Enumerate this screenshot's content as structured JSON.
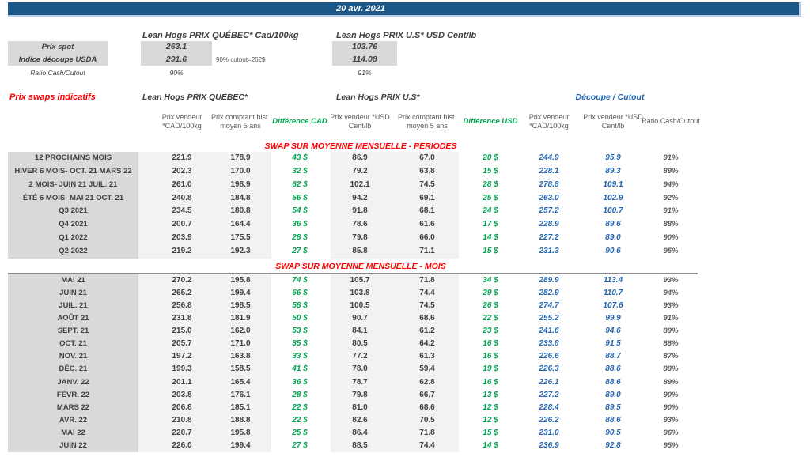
{
  "colors": {
    "title_bar_bg": "#1d5787",
    "section_title_red": "#ff0000",
    "difference_green": "#00a550",
    "cutout_blue": "#2365ae",
    "text_dark": "#404040",
    "text_gray": "#595959",
    "label_column_bg": "#d9d9d9",
    "data_column_bg": "#f2f2f2"
  },
  "titlebar": {
    "date": "20 avr. 2021"
  },
  "spot": {
    "quebec_title": "Lean Hogs PRIX QUÉBEC* Cad/100kg",
    "us_title": "Lean Hogs PRIX U.S* USD Cent/lb",
    "rows": [
      {
        "label": "Prix spot",
        "qc": "263.1",
        "us": "103.76"
      },
      {
        "label": "Indice découpe USDA",
        "qc": "291.6",
        "us": "114.08",
        "note": "90% cutout=262$"
      },
      {
        "label": "Ratio Cash/Cutout",
        "qc": "90%",
        "us": "91%"
      }
    ]
  },
  "table": {
    "left_title": "Prix swaps indicatifs",
    "group_quebec": "Lean Hogs PRIX QUÉBEC*",
    "group_us": "Lean Hogs PRIX U.S*",
    "group_cutout": "Découpe / Cutout",
    "headers": {
      "qc_sell": "Prix vendeur *CAD/100kg",
      "qc_hist": "Prix comptant hist. moyen 5 ans",
      "diff_cad": "Différence CAD",
      "us_sell": "Prix vendeur *USD Cent/lb",
      "us_hist": "Prix comptant hist. moyen 5 ans",
      "diff_usd": "Différence USD",
      "cut_cad": "Prix vendeur *CAD/100kg",
      "cut_usd": "Prix vendeur *USD Cent/lb",
      "ratio": "Ratio Cash/Cutout"
    },
    "sections": [
      {
        "title": "SWAP SUR MOYENNE MENSUELLE - PÉRIODES",
        "rows": [
          {
            "label": "12 PROCHAINS MOIS",
            "qc_sell": "221.9",
            "qc_hist": "178.9",
            "diff_cad": "43 $",
            "us_sell": "86.9",
            "us_hist": "67.0",
            "diff_usd": "20 $",
            "cut_cad": "244.9",
            "cut_usd": "95.9",
            "ratio": "91%"
          },
          {
            "label": "HIVER 6 MOIS- OCT. 21 MARS 22",
            "qc_sell": "202.3",
            "qc_hist": "170.0",
            "diff_cad": "32 $",
            "us_sell": "79.2",
            "us_hist": "63.8",
            "diff_usd": "15 $",
            "cut_cad": "228.1",
            "cut_usd": "89.3",
            "ratio": "89%"
          },
          {
            "label": "2 MOIS- JUIN 21 JUIL. 21",
            "qc_sell": "261.0",
            "qc_hist": "198.9",
            "diff_cad": "62 $",
            "us_sell": "102.1",
            "us_hist": "74.5",
            "diff_usd": "28 $",
            "cut_cad": "278.8",
            "cut_usd": "109.1",
            "ratio": "94%"
          },
          {
            "label": "ÉTÉ 6 MOIS- MAI 21 OCT. 21",
            "qc_sell": "240.8",
            "qc_hist": "184.8",
            "diff_cad": "56 $",
            "us_sell": "94.2",
            "us_hist": "69.1",
            "diff_usd": "25 $",
            "cut_cad": "263.0",
            "cut_usd": "102.9",
            "ratio": "92%"
          },
          {
            "label": "Q3 2021",
            "qc_sell": "234.5",
            "qc_hist": "180.8",
            "diff_cad": "54 $",
            "us_sell": "91.8",
            "us_hist": "68.1",
            "diff_usd": "24 $",
            "cut_cad": "257.2",
            "cut_usd": "100.7",
            "ratio": "91%"
          },
          {
            "label": "Q4 2021",
            "qc_sell": "200.7",
            "qc_hist": "164.4",
            "diff_cad": "36 $",
            "us_sell": "78.6",
            "us_hist": "61.6",
            "diff_usd": "17 $",
            "cut_cad": "228.9",
            "cut_usd": "89.6",
            "ratio": "88%"
          },
          {
            "label": "Q1 2022",
            "qc_sell": "203.9",
            "qc_hist": "175.5",
            "diff_cad": "28 $",
            "us_sell": "79.8",
            "us_hist": "66.0",
            "diff_usd": "14 $",
            "cut_cad": "227.2",
            "cut_usd": "89.0",
            "ratio": "90%"
          },
          {
            "label": "Q2 2022",
            "qc_sell": "219.2",
            "qc_hist": "192.3",
            "diff_cad": "27 $",
            "us_sell": "85.8",
            "us_hist": "71.1",
            "diff_usd": "15 $",
            "cut_cad": "231.3",
            "cut_usd": "90.6",
            "ratio": "95%"
          }
        ]
      },
      {
        "title": "SWAP SUR MOYENNE MENSUELLE - MOIS",
        "rows": [
          {
            "label": "MAI 21",
            "qc_sell": "270.2",
            "qc_hist": "195.8",
            "diff_cad": "74 $",
            "us_sell": "105.7",
            "us_hist": "71.8",
            "diff_usd": "34 $",
            "cut_cad": "289.9",
            "cut_usd": "113.4",
            "ratio": "93%"
          },
          {
            "label": "JUIN 21",
            "qc_sell": "265.2",
            "qc_hist": "199.4",
            "diff_cad": "66 $",
            "us_sell": "103.8",
            "us_hist": "74.4",
            "diff_usd": "29 $",
            "cut_cad": "282.9",
            "cut_usd": "110.7",
            "ratio": "94%"
          },
          {
            "label": "JUIL. 21",
            "qc_sell": "256.8",
            "qc_hist": "198.5",
            "diff_cad": "58 $",
            "us_sell": "100.5",
            "us_hist": "74.5",
            "diff_usd": "26 $",
            "cut_cad": "274.7",
            "cut_usd": "107.6",
            "ratio": "93%"
          },
          {
            "label": "AOÛT 21",
            "qc_sell": "231.8",
            "qc_hist": "181.9",
            "diff_cad": "50 $",
            "us_sell": "90.7",
            "us_hist": "68.6",
            "diff_usd": "22 $",
            "cut_cad": "255.2",
            "cut_usd": "99.9",
            "ratio": "91%"
          },
          {
            "label": "SEPT. 21",
            "qc_sell": "215.0",
            "qc_hist": "162.0",
            "diff_cad": "53 $",
            "us_sell": "84.1",
            "us_hist": "61.2",
            "diff_usd": "23 $",
            "cut_cad": "241.6",
            "cut_usd": "94.6",
            "ratio": "89%"
          },
          {
            "label": "OCT. 21",
            "qc_sell": "205.7",
            "qc_hist": "171.0",
            "diff_cad": "35 $",
            "us_sell": "80.5",
            "us_hist": "64.2",
            "diff_usd": "16 $",
            "cut_cad": "233.8",
            "cut_usd": "91.5",
            "ratio": "88%"
          },
          {
            "label": "NOV. 21",
            "qc_sell": "197.2",
            "qc_hist": "163.8",
            "diff_cad": "33 $",
            "us_sell": "77.2",
            "us_hist": "61.3",
            "diff_usd": "16 $",
            "cut_cad": "226.6",
            "cut_usd": "88.7",
            "ratio": "87%"
          },
          {
            "label": "DÉC. 21",
            "qc_sell": "199.3",
            "qc_hist": "158.5",
            "diff_cad": "41 $",
            "us_sell": "78.0",
            "us_hist": "59.4",
            "diff_usd": "19 $",
            "cut_cad": "226.3",
            "cut_usd": "88.6",
            "ratio": "88%"
          },
          {
            "label": "JANV. 22",
            "qc_sell": "201.1",
            "qc_hist": "165.4",
            "diff_cad": "36 $",
            "us_sell": "78.7",
            "us_hist": "62.8",
            "diff_usd": "16 $",
            "cut_cad": "226.1",
            "cut_usd": "88.6",
            "ratio": "89%"
          },
          {
            "label": "FÉVR. 22",
            "qc_sell": "203.8",
            "qc_hist": "176.1",
            "diff_cad": "28 $",
            "us_sell": "79.8",
            "us_hist": "66.7",
            "diff_usd": "13 $",
            "cut_cad": "227.2",
            "cut_usd": "89.0",
            "ratio": "90%"
          },
          {
            "label": "MARS 22",
            "qc_sell": "206.8",
            "qc_hist": "185.1",
            "diff_cad": "22 $",
            "us_sell": "81.0",
            "us_hist": "68.6",
            "diff_usd": "12 $",
            "cut_cad": "228.4",
            "cut_usd": "89.5",
            "ratio": "90%"
          },
          {
            "label": "AVR. 22",
            "qc_sell": "210.8",
            "qc_hist": "188.8",
            "diff_cad": "22 $",
            "us_sell": "82.6",
            "us_hist": "70.5",
            "diff_usd": "12 $",
            "cut_cad": "226.2",
            "cut_usd": "88.6",
            "ratio": "93%"
          },
          {
            "label": "MAI 22",
            "qc_sell": "220.7",
            "qc_hist": "195.8",
            "diff_cad": "25 $",
            "us_sell": "86.4",
            "us_hist": "71.8",
            "diff_usd": "15 $",
            "cut_cad": "231.0",
            "cut_usd": "90.5",
            "ratio": "96%"
          },
          {
            "label": "JUIN 22",
            "qc_sell": "226.0",
            "qc_hist": "199.4",
            "diff_cad": "27 $",
            "us_sell": "88.5",
            "us_hist": "74.4",
            "diff_usd": "14 $",
            "cut_cad": "236.9",
            "cut_usd": "92.8",
            "ratio": "95%"
          }
        ]
      }
    ]
  }
}
